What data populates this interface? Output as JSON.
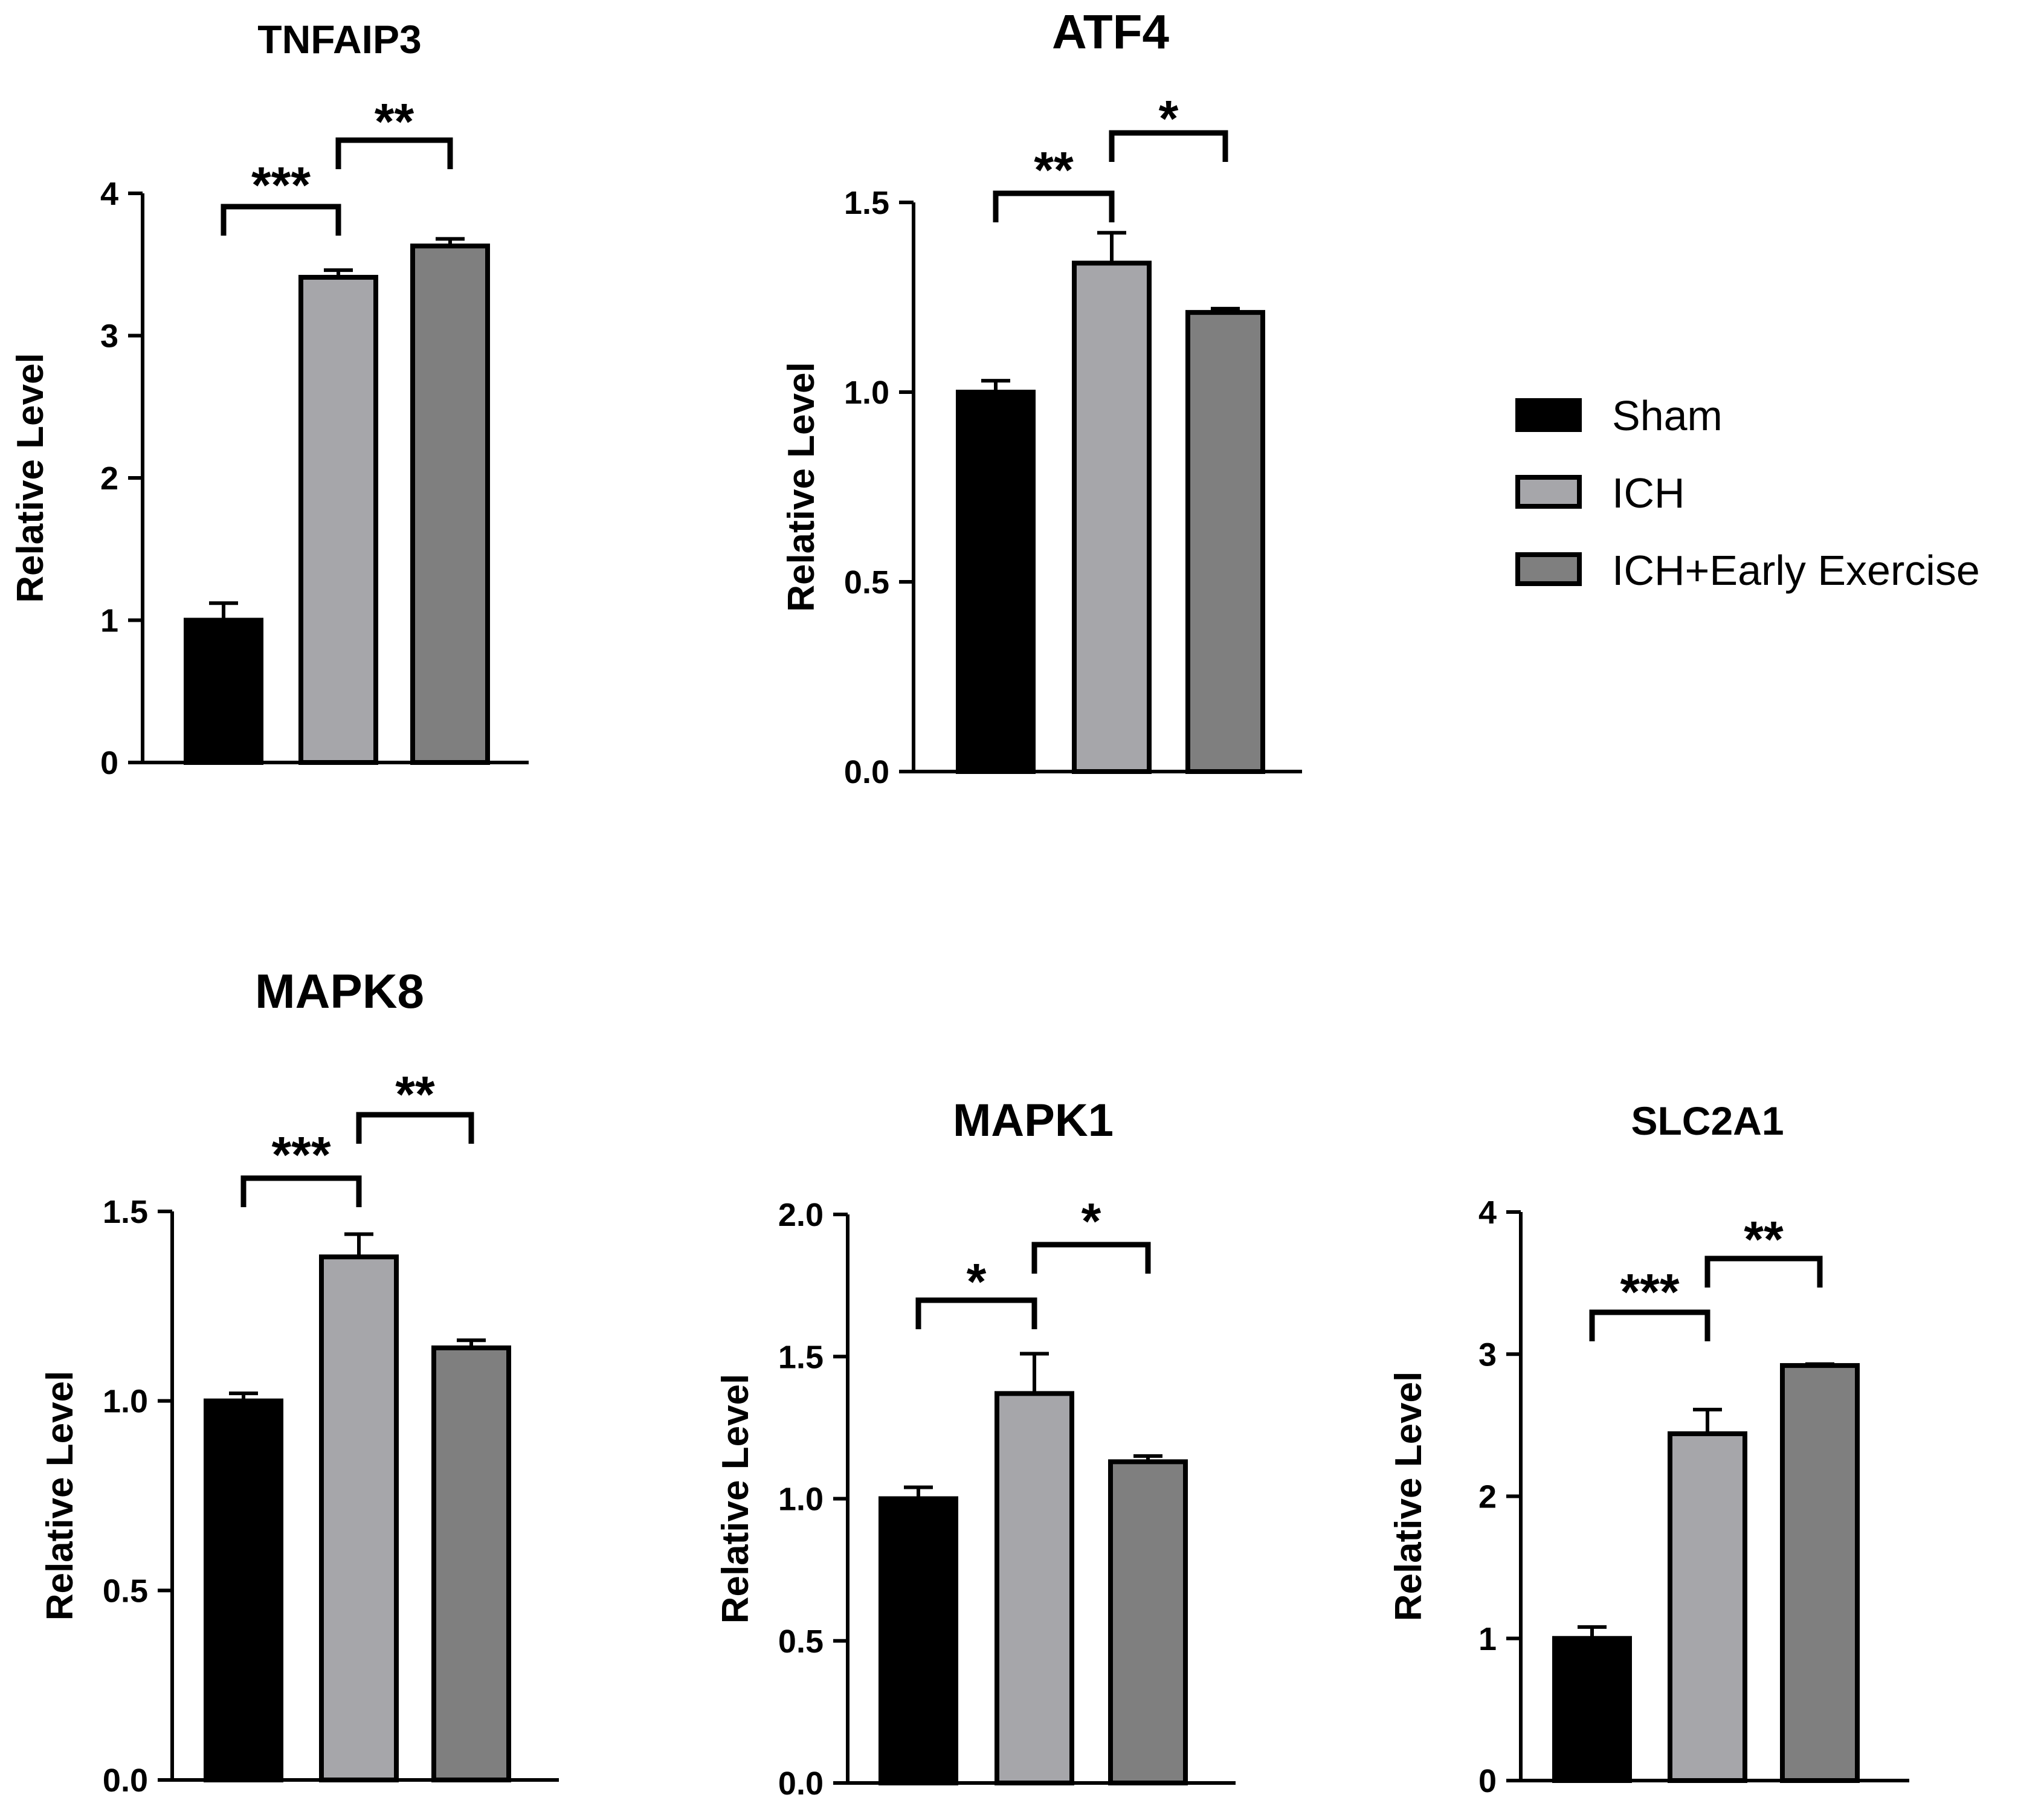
{
  "legend": [
    {
      "label": "Sham",
      "color": "#000000"
    },
    {
      "label": "ICH",
      "color": "#a6a6aa"
    },
    {
      "label": "ICH+Early Exercise",
      "color": "#7f7f7f"
    }
  ],
  "chart_data": [
    {
      "type": "bar",
      "title": "TNFAIP3",
      "ylabel": "Relative Level",
      "categories": [
        "Sham",
        "ICH",
        "ICH+Early Exercise"
      ],
      "values": [
        1.0,
        3.41,
        3.63
      ],
      "errors": [
        0.12,
        0.05,
        0.05
      ],
      "ylim": [
        0,
        4
      ],
      "yticks": [
        "0",
        "1",
        "2",
        "3",
        "4"
      ],
      "significance": [
        {
          "from": 0,
          "to": 1,
          "label": "***"
        },
        {
          "from": 1,
          "to": 2,
          "label": "**"
        }
      ]
    },
    {
      "type": "bar",
      "title": "ATF4",
      "ylabel": "Relative Level",
      "categories": [
        "Sham",
        "ICH",
        "ICH+Early Exercise"
      ],
      "values": [
        1.0,
        1.34,
        1.21
      ],
      "errors": [
        0.03,
        0.08,
        0.01
      ],
      "ylim": [
        0,
        1.5
      ],
      "yticks": [
        "0.0",
        "0.5",
        "1.0",
        "1.5"
      ],
      "significance": [
        {
          "from": 0,
          "to": 1,
          "label": "**"
        },
        {
          "from": 1,
          "to": 2,
          "label": "*"
        }
      ]
    },
    {
      "type": "bar",
      "title": "MAPK8",
      "ylabel": "Relative Level",
      "categories": [
        "Sham",
        "ICH",
        "ICH+Early Exercise"
      ],
      "values": [
        1.0,
        1.38,
        1.14
      ],
      "errors": [
        0.02,
        0.06,
        0.02
      ],
      "ylim": [
        0,
        1.5
      ],
      "yticks": [
        "0.0",
        "0.5",
        "1.0",
        "1.5"
      ],
      "significance": [
        {
          "from": 0,
          "to": 1,
          "label": "***"
        },
        {
          "from": 1,
          "to": 2,
          "label": "**"
        }
      ]
    },
    {
      "type": "bar",
      "title": "MAPK1",
      "ylabel": "Relative Level",
      "categories": [
        "Sham",
        "ICH",
        "ICH+Early Exercise"
      ],
      "values": [
        1.0,
        1.37,
        1.13
      ],
      "errors": [
        0.04,
        0.14,
        0.02
      ],
      "ylim": [
        0,
        2.0
      ],
      "yticks": [
        "0.0",
        "0.5",
        "1.0",
        "1.5",
        "2.0"
      ],
      "significance": [
        {
          "from": 0,
          "to": 1,
          "label": "*"
        },
        {
          "from": 1,
          "to": 2,
          "label": "*"
        }
      ]
    },
    {
      "type": "bar",
      "title": "SLC2A1",
      "ylabel": "Relative Level",
      "categories": [
        "Sham",
        "ICH",
        "ICH+Early Exercise"
      ],
      "values": [
        1.0,
        2.44,
        2.92
      ],
      "errors": [
        0.08,
        0.17,
        0.01
      ],
      "ylim": [
        0,
        4
      ],
      "yticks": [
        "0",
        "1",
        "2",
        "3",
        "4"
      ],
      "significance": [
        {
          "from": 0,
          "to": 1,
          "label": "***"
        },
        {
          "from": 1,
          "to": 2,
          "label": "**"
        }
      ]
    }
  ]
}
